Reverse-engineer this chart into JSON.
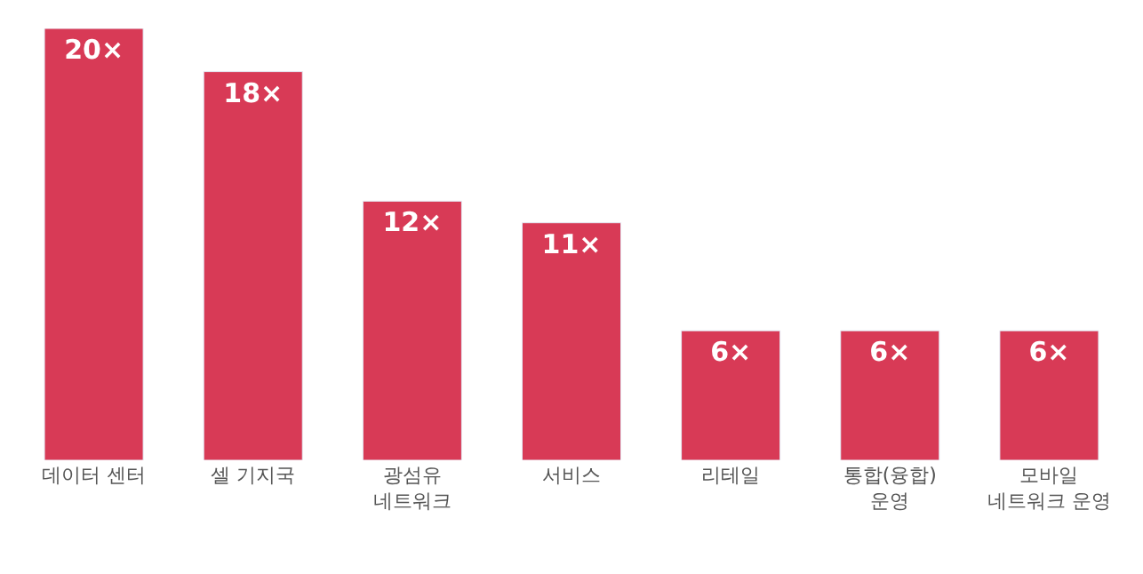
{
  "chart_data": {
    "type": "bar",
    "categories": [
      "데이터 센터",
      "셀 기지국",
      "광섬유\n네트워크",
      "서비스",
      "리테일",
      "통합(융합)\n운영",
      "모바일\n네트워크 운영"
    ],
    "values": [
      20,
      18,
      12,
      11,
      6,
      6,
      6
    ],
    "value_labels": [
      "20×",
      "18×",
      "12×",
      "11×",
      "6×",
      "6×",
      "6×"
    ],
    "color": "#d83a56"
  }
}
